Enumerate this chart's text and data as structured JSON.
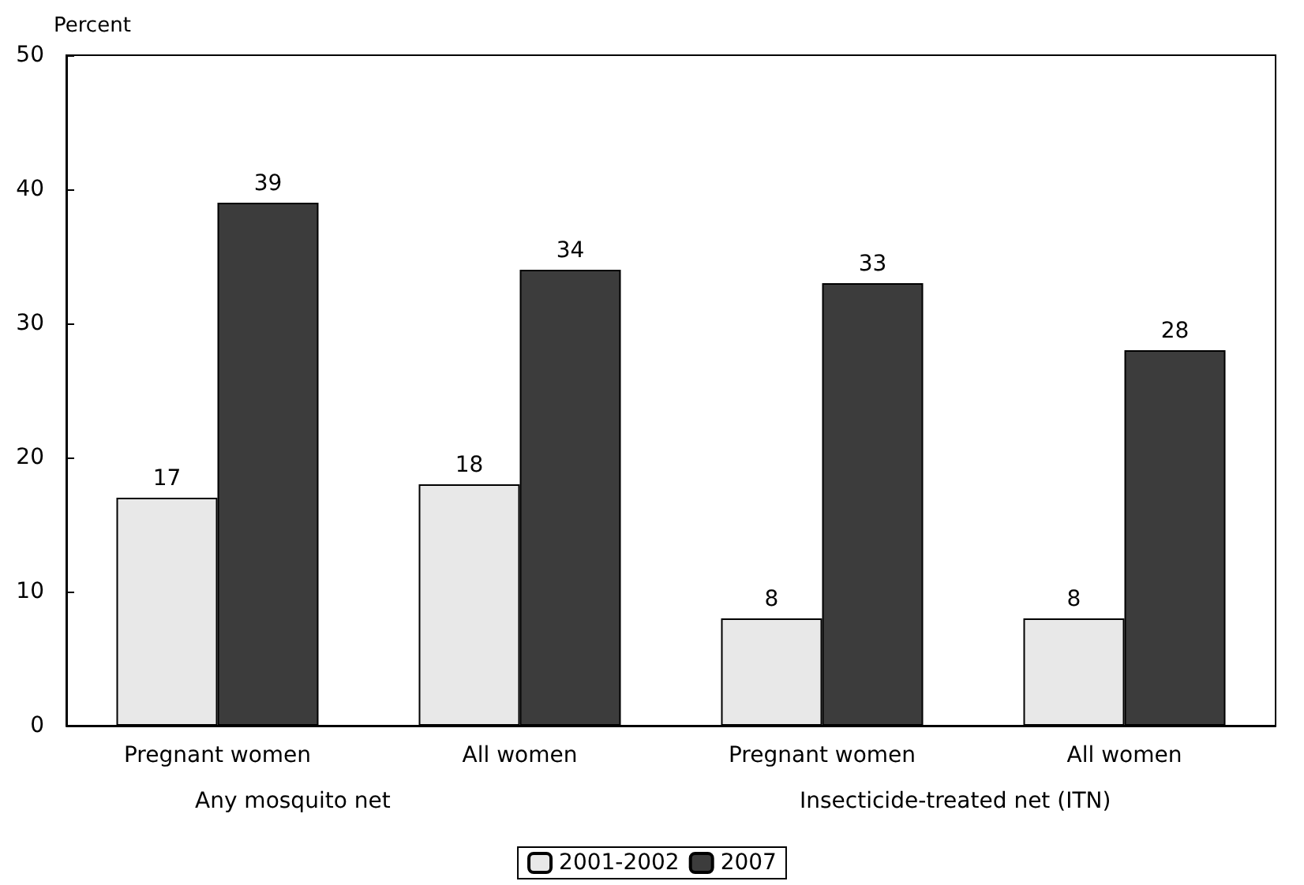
{
  "chart_data": {
    "type": "bar",
    "ylabel": "Percent",
    "categories": [
      "Pregnant women",
      "All women",
      "Pregnant women",
      "All women"
    ],
    "series": [
      {
        "name": "2001-2002",
        "color": "#e8e8e8",
        "values": [
          17,
          18,
          8,
          8
        ]
      },
      {
        "name": "2007",
        "color": "#3c3c3c",
        "values": [
          39,
          34,
          33,
          28
        ]
      }
    ],
    "annotations": [
      "Any mosquito net",
      "Insecticide-treated net (ITN)"
    ],
    "ylim": [
      0,
      50
    ],
    "yticks": [
      0,
      10,
      20,
      30,
      40,
      50
    ],
    "grid": false,
    "legend": "bottom",
    "data_labels": true
  }
}
